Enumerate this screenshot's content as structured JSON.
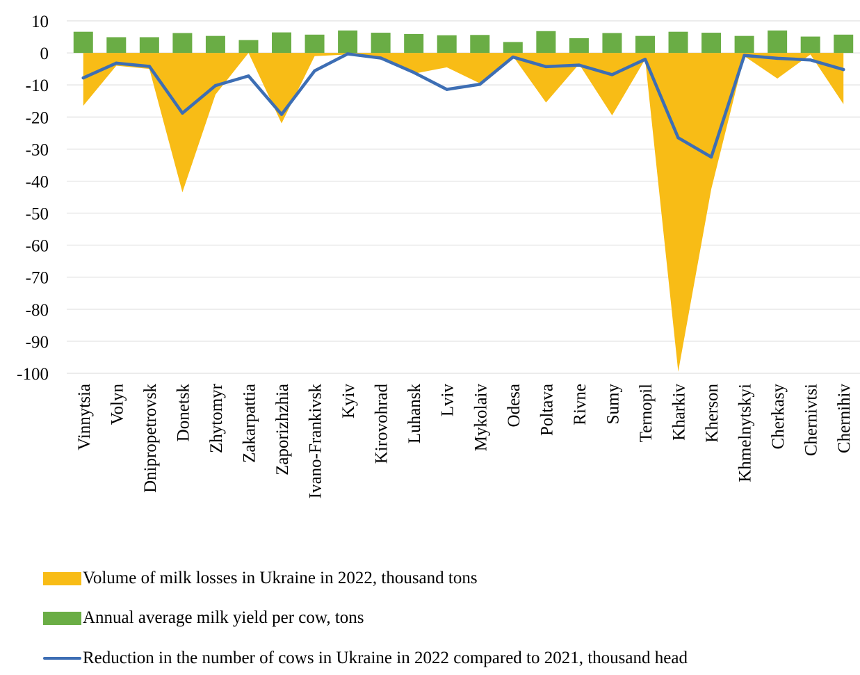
{
  "chart_data": {
    "type": "bar+area+line",
    "categories": [
      "Vinnytsia",
      "Volyn",
      "Dnipropetrovsk",
      "Donetsk",
      "Zhytomyr",
      "Zakarpattia",
      "Zaporizhzhia",
      "Ivano-Frankivsk",
      "Kyiv",
      "Kirovohrad",
      "Luhansk",
      "Lviv",
      "Mykolaiv",
      "Odesa",
      "Poltava",
      "Rivne",
      "Sumy",
      "Ternopil",
      "Kharkiv",
      "Kherson",
      "Khmelnytskyi",
      "Cherkasy",
      "Chernivtsi",
      "Chernihiv"
    ],
    "yticks": [
      "10",
      "0",
      "-10",
      "-20",
      "-30",
      "-40",
      "-50",
      "-60",
      "-70",
      "-80",
      "-90",
      "-100"
    ],
    "ylim": [
      -100,
      10
    ],
    "grid": true,
    "legend_position": "bottom",
    "series": [
      {
        "name": "Volume of milk losses in Ukraine in 2022, thousand tons",
        "kind": "area",
        "color": "#F8BC16",
        "values": [
          -16.5,
          -4.0,
          -5.0,
          -43.5,
          -13.0,
          0.0,
          -22.0,
          -1.0,
          -0.5,
          -1.5,
          -6.5,
          -4.5,
          -9.5,
          -1.0,
          -15.5,
          -3.5,
          -19.5,
          -2.0,
          -99.5,
          -42.5,
          -1.0,
          -8.0,
          -0.5,
          -16.0
        ]
      },
      {
        "name": "Annual average milk yield per cow, tons",
        "kind": "bar",
        "color": "#6AAD45",
        "values": [
          6.6,
          4.9,
          4.9,
          6.2,
          5.3,
          4.0,
          6.4,
          5.7,
          7.0,
          6.3,
          5.9,
          5.5,
          5.6,
          3.4,
          6.8,
          4.6,
          6.2,
          5.3,
          6.6,
          6.3,
          5.3,
          7.0,
          5.1,
          5.7
        ]
      },
      {
        "name": "Reduction in the number of cows in Ukraine in 2022 compared to 2021, thousand head",
        "kind": "line",
        "color": "#3D6EB4",
        "values": [
          -7.8,
          -3.2,
          -4.2,
          -18.8,
          -10.2,
          -7.2,
          -19.2,
          -5.6,
          -0.3,
          -1.6,
          -6.1,
          -11.4,
          -9.8,
          -1.3,
          -4.3,
          -3.8,
          -6.8,
          -2.0,
          -26.5,
          -32.5,
          -0.8,
          -1.7,
          -2.2,
          -5.2
        ]
      }
    ]
  }
}
